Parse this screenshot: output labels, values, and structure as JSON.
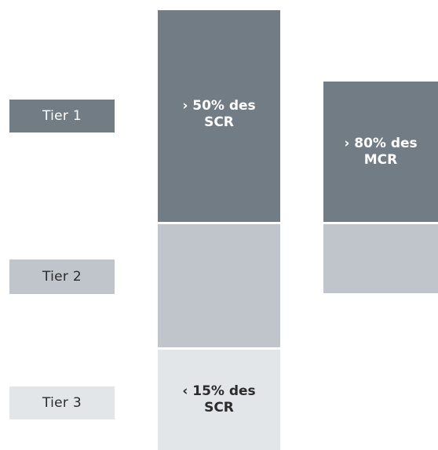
{
  "tiers": {
    "tier1": {
      "label": "Tier 1"
    },
    "tier2": {
      "label": "Tier 2"
    },
    "tier3": {
      "label": "Tier 3"
    }
  },
  "scr_column": {
    "tier1_text": "› 50% des\nSCR",
    "tier3_text": "‹ 15% des\nSCR"
  },
  "mcr_column": {
    "tier1_text": "› 80% des\nMCR"
  },
  "colors": {
    "tier1": "#727c84",
    "tier2": "#bfc5cb",
    "tier3": "#e3e6e9"
  }
}
